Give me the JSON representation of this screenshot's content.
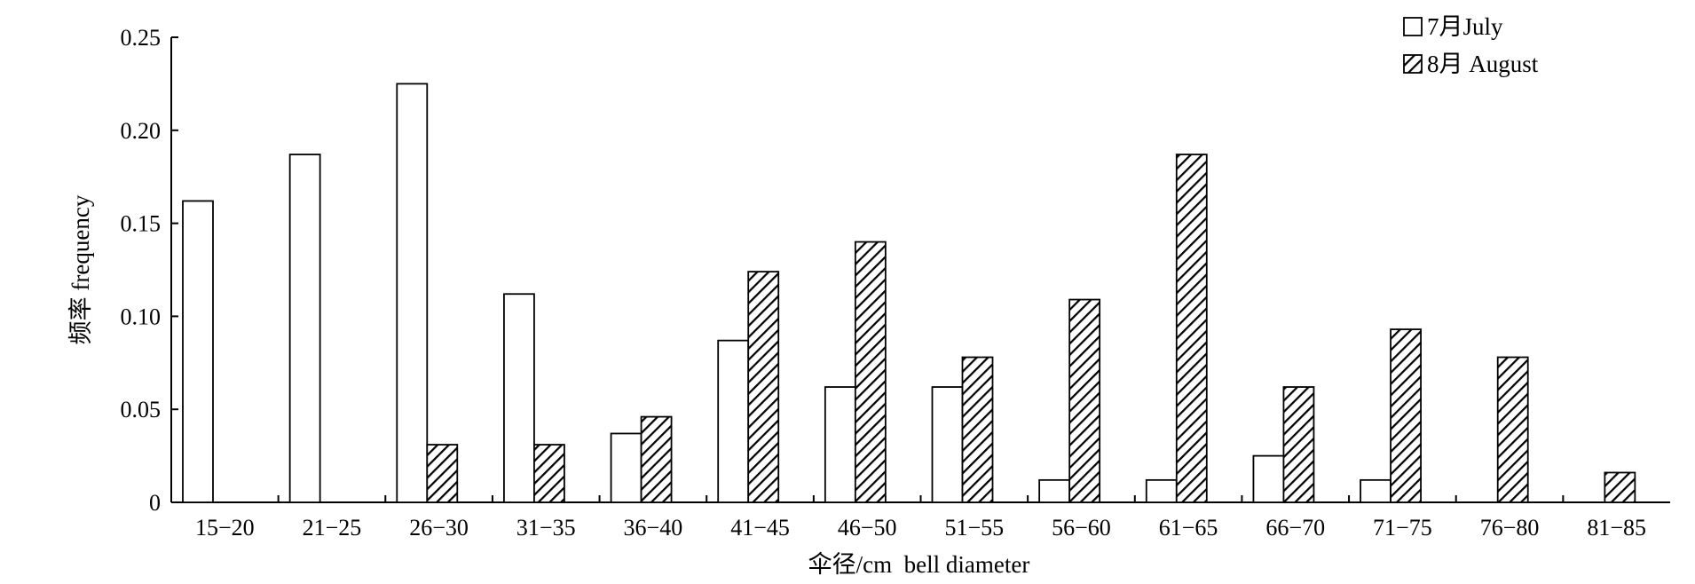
{
  "chart_data": {
    "type": "bar",
    "categories": [
      "15−20",
      "21−25",
      "26−30",
      "31−35",
      "36−40",
      "41−45",
      "46−50",
      "51−55",
      "56−60",
      "61−65",
      "66−70",
      "71−75",
      "76−80",
      "81−85"
    ],
    "series": [
      {
        "name": "7月July",
        "values": [
          0.162,
          0.187,
          0.225,
          0.112,
          0.037,
          0.087,
          0.062,
          0.062,
          0.012,
          0.012,
          0.025,
          0.012,
          0,
          0
        ],
        "pattern": "none"
      },
      {
        "name": "8月 August",
        "values": [
          0,
          0,
          0.031,
          0.031,
          0.046,
          0.124,
          0.14,
          0.078,
          0.109,
          0.187,
          0.062,
          0.093,
          0.078,
          0.016
        ],
        "pattern": "diagonal-hatch"
      }
    ],
    "xlabel": "伞径/cm  bell diameter",
    "ylabel": "频率 frequency",
    "ylim": [
      0,
      0.25
    ],
    "yticks": [
      0,
      0.05,
      0.1,
      0.15,
      0.2,
      0.25
    ],
    "ytick_labels": [
      "0",
      "0.05",
      "0.10",
      "0.15",
      "0.20",
      "0.25"
    ],
    "legend_position": "top-right",
    "grid": false
  }
}
